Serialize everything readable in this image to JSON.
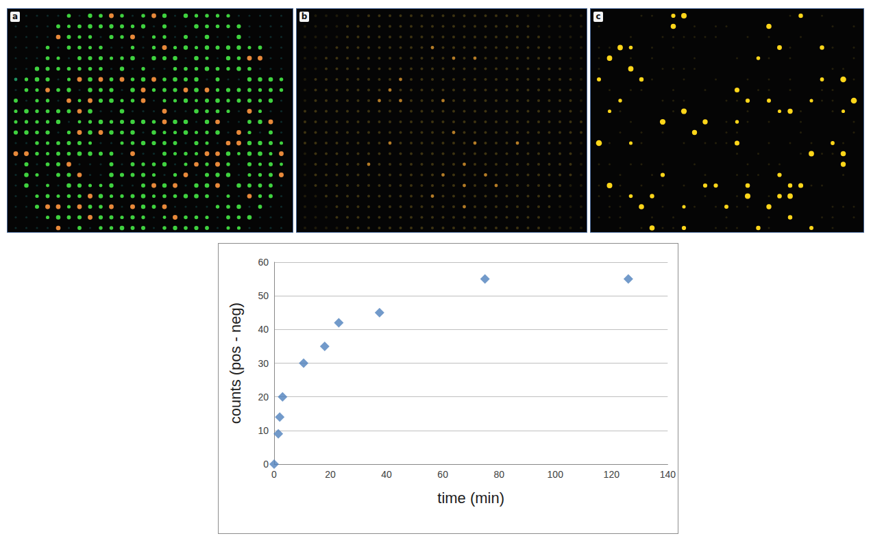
{
  "panels": [
    "a",
    "b",
    "c"
  ],
  "chart_data": {
    "type": "scatter",
    "x_label": "time (min)",
    "y_label": "counts (pos - neg)",
    "x": [
      0,
      1.5,
      2,
      3,
      10.5,
      18,
      23,
      37.5,
      75,
      126
    ],
    "values": [
      0,
      9,
      14,
      20,
      30,
      35,
      42,
      45,
      55,
      55
    ],
    "color": "#4f81bd",
    "marker": "diamond",
    "xlim": [
      0,
      140
    ],
    "xticks": [
      0,
      20,
      40,
      60,
      80,
      100,
      120,
      140
    ],
    "ylim": [
      0,
      60
    ],
    "yticks": [
      0,
      10,
      20,
      30,
      40,
      50,
      60
    ],
    "grid": true
  }
}
